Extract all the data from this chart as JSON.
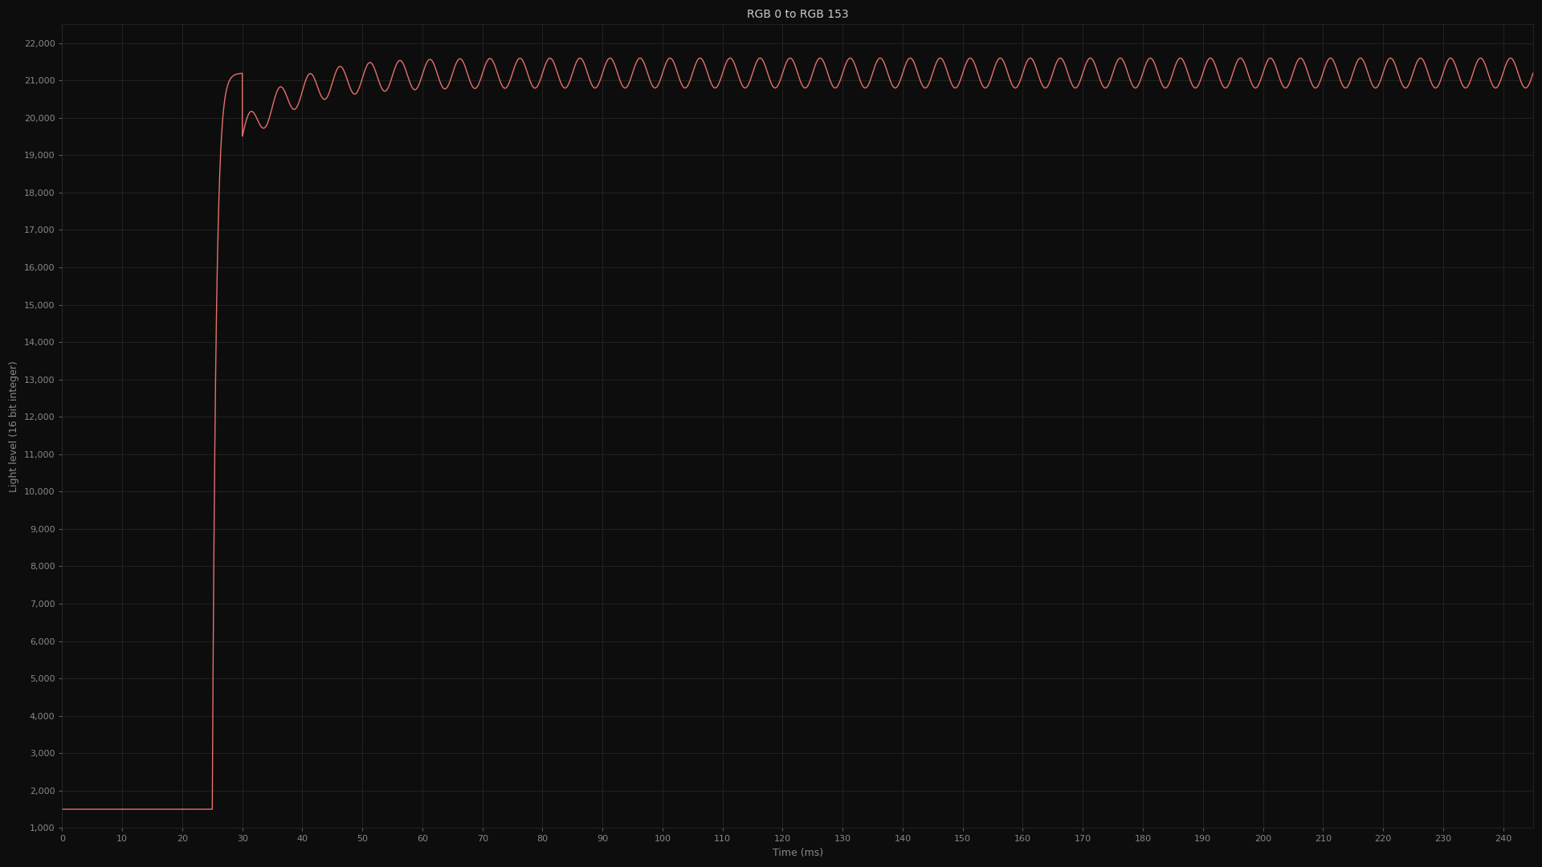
{
  "title": "RGB 0 to RGB 153",
  "xlabel": "Time (ms)",
  "ylabel": "Light level (16 bit integer)",
  "bg_color": "#0d0d0d",
  "plot_bg_color": "#0d0d0d",
  "grid_color": "#2a2a2a",
  "line_color": "#e8706a",
  "text_color": "#888888",
  "title_color": "#cccccc",
  "xlim": [
    0,
    245
  ],
  "ylim_bottom": 1000,
  "ylim_top": 22500,
  "xtick_step": 10,
  "ytick_start": 1000,
  "ytick_step": 1000,
  "ytick_end": 22001,
  "initial_level": 1500,
  "rise_start": 25.0,
  "rise_end": 30.0,
  "steady_level": 21200,
  "ripple_amplitude": 400,
  "ripple_freq_hz": 200,
  "time_end": 245,
  "line_width": 1.0,
  "overshoot_tau": 15.0,
  "overshoot_amount": 500
}
